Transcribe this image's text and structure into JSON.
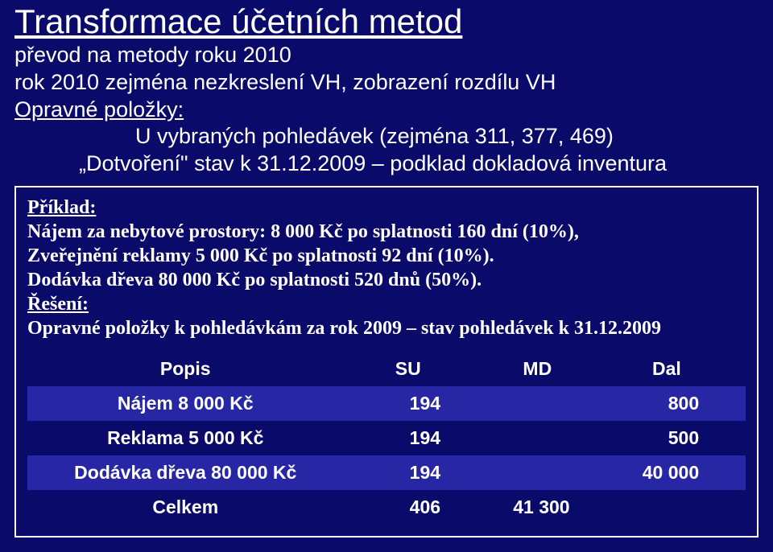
{
  "title": "Transformace účetních metod",
  "lines": {
    "l1": "převod na metody roku 2010",
    "l2": "rok 2010 zejména nezkreslení VH, zobrazení rozdílu VH",
    "l3": "Opravné položky:",
    "l4": "U vybraných pohledávek (zejména 311, 377, 469)",
    "l5": "„Dotvoření\" stav k 31.12.2009 – podklad dokladová inventura"
  },
  "example": {
    "head": "Příklad:",
    "p1": "Nájem za nebytové prostory: 8 000 Kč po splatnosti 160 dní (10%),",
    "p2": "Zveřejnění reklamy 5 000 Kč po splatnosti 92 dní (10%).",
    "p3": "Dodávka dřeva 80 000 Kč po splatnosti 520 dnů (50%).",
    "sol": "Řešení:",
    "p4": "Opravné položky k pohledávkám za rok 2009 – stav pohledávek k 31.12.2009"
  },
  "table": {
    "headers": {
      "popis": "Popis",
      "su": "SU",
      "md": "MD",
      "dal": "Dal"
    },
    "rows": [
      {
        "popis": "Nájem 8 000 Kč",
        "su": "194",
        "md": "",
        "dal": "800"
      },
      {
        "popis": "Reklama 5 000 Kč",
        "su": "194",
        "md": "",
        "dal": "500"
      },
      {
        "popis": "Dodávka dřeva 80 000 Kč",
        "su": "194",
        "md": "",
        "dal": "40 000"
      },
      {
        "popis": "Celkem",
        "su": "406",
        "md": "41 300",
        "dal": ""
      }
    ]
  }
}
